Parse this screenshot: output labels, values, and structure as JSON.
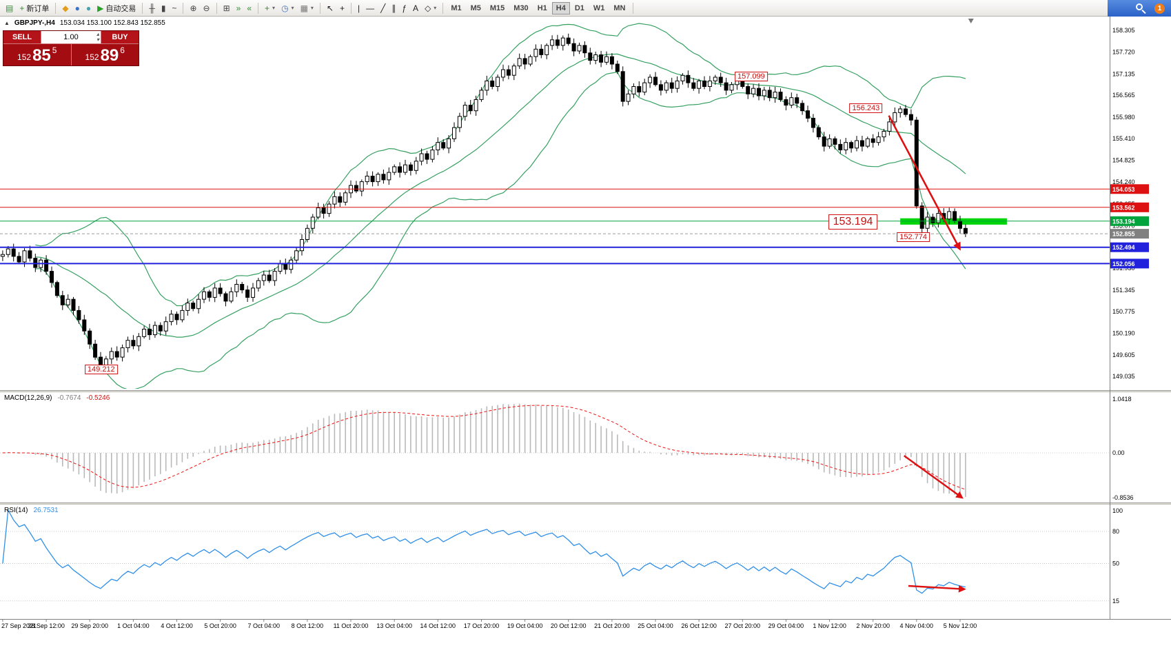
{
  "toolbar": {
    "dropdown_glyph": "▾",
    "groups": [
      [
        {
          "name": "terminal-icon",
          "glyph": "▤",
          "color": "#3a8f3a"
        },
        {
          "name": "new-order-button",
          "glyph": "+",
          "color": "#2d8f2d",
          "label": "新订单"
        }
      ],
      [
        {
          "name": "mql5-market-icon",
          "glyph": "◆",
          "color": "#e39b1a"
        },
        {
          "name": "signals-icon",
          "glyph": "●",
          "color": "#3b72c8"
        },
        {
          "name": "vps-icon",
          "glyph": "●",
          "color": "#49a0ae"
        },
        {
          "name": "auto-trading-button",
          "glyph": "▶",
          "color": "#27a127",
          "label": "自动交易"
        }
      ],
      [
        {
          "name": "bar-chart-mode-icon",
          "glyph": "╫",
          "color": "#444444"
        },
        {
          "name": "candle-chart-mode-icon",
          "glyph": "▮",
          "color": "#444444"
        },
        {
          "name": "line-chart-mode-icon",
          "glyph": "~",
          "color": "#444444"
        }
      ],
      [
        {
          "name": "zoom-in-icon",
          "glyph": "⊕",
          "color": "#444444"
        },
        {
          "name": "zoom-out-icon",
          "glyph": "⊖",
          "color": "#444444"
        }
      ],
      [
        {
          "name": "tile-windows-icon",
          "glyph": "⊞",
          "color": "#444444"
        },
        {
          "name": "auto-scroll-icon",
          "glyph": "»",
          "color": "#2d8f2d"
        },
        {
          "name": "chart-shift-icon",
          "glyph": "«",
          "color": "#2d8f2d"
        }
      ],
      [
        {
          "name": "new-chart-button",
          "glyph": "+",
          "color": "#2d8f2d",
          "dropdown": true
        },
        {
          "name": "profiles-button",
          "glyph": "◷",
          "color": "#3b72c8",
          "dropdown": true
        },
        {
          "name": "templates-button",
          "glyph": "▦",
          "color": "#777777",
          "dropdown": true
        }
      ],
      [
        {
          "name": "cursor-icon",
          "glyph": "↖",
          "color": "#222222"
        },
        {
          "name": "crosshair-icon",
          "glyph": "+",
          "color": "#222222"
        }
      ],
      [
        {
          "name": "vertical-line-icon",
          "glyph": "|",
          "color": "#222222"
        },
        {
          "name": "horizontal-line-icon",
          "glyph": "—",
          "color": "#222222"
        },
        {
          "name": "trendline-icon",
          "glyph": "╱",
          "color": "#222222"
        },
        {
          "name": "channel-icon",
          "glyph": "∥",
          "color": "#222222"
        },
        {
          "name": "fibonacci-icon",
          "glyph": "ƒ",
          "color": "#222222"
        },
        {
          "name": "text-icon",
          "glyph": "A",
          "color": "#222222"
        },
        {
          "name": "shapes-button",
          "glyph": "◇",
          "color": "#222222",
          "dropdown": true
        }
      ]
    ],
    "timeframes": {
      "items": [
        "M1",
        "M5",
        "M15",
        "M30",
        "H1",
        "H4",
        "D1",
        "W1",
        "MN"
      ],
      "active": "H4"
    },
    "badge": "1"
  },
  "chart": {
    "collapse_glyph": "▲",
    "title_symbol": "GBPJPY-,H4",
    "title_ohlc": "153.034 153.100 152.843 152.855"
  },
  "trade_panel": {
    "sell_label": "SELL",
    "buy_label": "BUY",
    "volume": "1.00",
    "spin_up": "▴",
    "spin_down": "▾",
    "sell_price": {
      "base": "152",
      "big": "85",
      "sup": "5"
    },
    "buy_price": {
      "base": "152",
      "big": "89",
      "sup": "6"
    }
  },
  "chart_data": [
    {
      "type": "candlestick",
      "symbol": "GBPJPY-",
      "timeframe": "H4",
      "slots": 204,
      "open_first": 152.25,
      "closes": [
        152.3,
        152.45,
        152.25,
        152.1,
        152.4,
        152.2,
        151.95,
        152.15,
        151.85,
        151.55,
        151.2,
        150.95,
        151.1,
        150.8,
        150.55,
        150.25,
        149.9,
        149.55,
        149.3,
        149.5,
        149.7,
        149.55,
        149.8,
        150.0,
        149.85,
        150.1,
        150.3,
        150.15,
        150.4,
        150.25,
        150.5,
        150.7,
        150.55,
        150.8,
        151.0,
        150.85,
        151.1,
        151.3,
        151.15,
        151.4,
        151.25,
        151.05,
        151.3,
        151.5,
        151.35,
        151.15,
        151.4,
        151.6,
        151.75,
        151.6,
        151.85,
        152.05,
        151.9,
        152.15,
        152.4,
        152.7,
        153.0,
        153.3,
        153.55,
        153.4,
        153.65,
        153.85,
        153.7,
        153.95,
        154.15,
        154.0,
        154.25,
        154.4,
        154.25,
        154.45,
        154.3,
        154.5,
        154.65,
        154.5,
        154.7,
        154.55,
        154.8,
        155.0,
        154.85,
        155.1,
        155.3,
        155.15,
        155.4,
        155.7,
        156.0,
        156.3,
        156.15,
        156.45,
        156.7,
        156.95,
        156.8,
        157.05,
        157.25,
        157.1,
        157.35,
        157.55,
        157.4,
        157.6,
        157.8,
        157.65,
        157.9,
        158.05,
        157.9,
        158.1,
        157.95,
        157.75,
        157.9,
        157.7,
        157.5,
        157.65,
        157.45,
        157.6,
        157.4,
        157.2,
        156.4,
        156.6,
        156.8,
        156.65,
        156.9,
        157.05,
        156.85,
        156.7,
        156.9,
        156.75,
        156.95,
        157.1,
        156.9,
        156.75,
        156.95,
        156.8,
        156.95,
        157.05,
        156.9,
        156.7,
        156.85,
        156.95,
        156.8,
        156.6,
        156.75,
        156.55,
        156.7,
        156.5,
        156.65,
        156.45,
        156.3,
        156.5,
        156.35,
        156.15,
        155.95,
        155.7,
        155.45,
        155.2,
        155.4,
        155.25,
        155.1,
        155.3,
        155.15,
        155.35,
        155.2,
        155.4,
        155.3,
        155.45,
        155.6,
        155.85,
        156.1,
        156.2,
        156.05,
        155.9,
        153.6,
        153.0,
        153.3,
        153.15,
        153.4,
        153.25,
        153.45,
        153.2,
        153.0,
        152.855
      ],
      "bollinger": {
        "period": 20,
        "deviation": 2,
        "color": "#35a060"
      },
      "y_ticks": [
        158.305,
        157.72,
        157.135,
        156.565,
        155.98,
        155.41,
        154.825,
        154.24,
        153.655,
        153.07,
        152.485,
        151.93,
        151.345,
        150.775,
        150.19,
        149.605,
        149.035
      ],
      "levels": [
        {
          "price": 154.053,
          "label": "154.053",
          "color": "#dd1111",
          "thickness": 1
        },
        {
          "price": 153.562,
          "label": "153.562",
          "color": "#dd1111",
          "thickness": 1
        },
        {
          "price": 153.194,
          "label": "153.194",
          "color": "#00a33c",
          "thickness": 1
        },
        {
          "price": 152.494,
          "label": "152.494",
          "color": "#2222dd",
          "thickness": 2
        },
        {
          "price": 152.056,
          "label": "152.056",
          "color": "#2222dd",
          "thickness": 2
        }
      ],
      "bid": {
        "price": 152.855,
        "label": "152.855",
        "color": "#808080"
      },
      "zone": {
        "bar_from": 165,
        "bar_to": 184.6,
        "price_top": 153.27,
        "price_bottom": 153.1,
        "color": "#00d40a"
      },
      "annotations": [
        {
          "text": "157.099",
          "bar": 137.6,
          "price": 157.06,
          "size": "normal"
        },
        {
          "text": "156.243",
          "bar": 158.7,
          "price": 156.22,
          "size": "normal"
        },
        {
          "text": "153.194",
          "bar": 156.3,
          "price": 153.18,
          "size": "large"
        },
        {
          "text": "152.774",
          "bar": 167.4,
          "price": 152.76,
          "size": "normal"
        },
        {
          "text": "149.212",
          "bar": 18.1,
          "price": 149.22,
          "size": "normal"
        }
      ],
      "arrow": {
        "from_bar": 162.9,
        "from_price": 156.02,
        "to_bar": 175.9,
        "to_price": 152.46
      },
      "x_labels": [
        "27 Sep 2021",
        "28 Sep 12:00",
        "29 Sep 20:00",
        "1 Oct 04:00",
        "4 Oct 12:00",
        "5 Oct 20:00",
        "7 Oct 04:00",
        "8 Oct 12:00",
        "11 Oct 20:00",
        "13 Oct 04:00",
        "14 Oct 12:00",
        "17 Oct 20:00",
        "19 Oct 04:00",
        "20 Oct 12:00",
        "21 Oct 20:00",
        "25 Oct 04:00",
        "26 Oct 12:00",
        "27 Oct 20:00",
        "29 Oct 04:00",
        "1 Nov 12:00",
        "2 Nov 20:00",
        "4 Nov 04:00",
        "5 Nov 12:00"
      ],
      "label_every": 8
    },
    {
      "type": "macd",
      "label": "MACD(12,26,9)",
      "value_main": "-0.7674",
      "value_signal": "-0.5246",
      "fast": 12,
      "slow": 26,
      "signal": 9,
      "axis_labels": {
        "max": "1.0418",
        "zero": "0.00",
        "min": "-0.8536"
      },
      "colors": {
        "histogram": "#b9b9b9",
        "signal": "#ee1111"
      },
      "arrow": {
        "from_bar": 165.7,
        "from_val": -0.05,
        "to_bar": 176.3,
        "to_val": -0.78
      }
    },
    {
      "type": "rsi",
      "label": "RSI(14)",
      "value": "26.7531",
      "period": 14,
      "color": "#2f8fe8",
      "levels": [
        80,
        50,
        15
      ],
      "axis_top": "100",
      "arrow": {
        "from_bar": 166.5,
        "from_val": 29,
        "to_bar": 176.7,
        "to_val": 26
      }
    }
  ]
}
